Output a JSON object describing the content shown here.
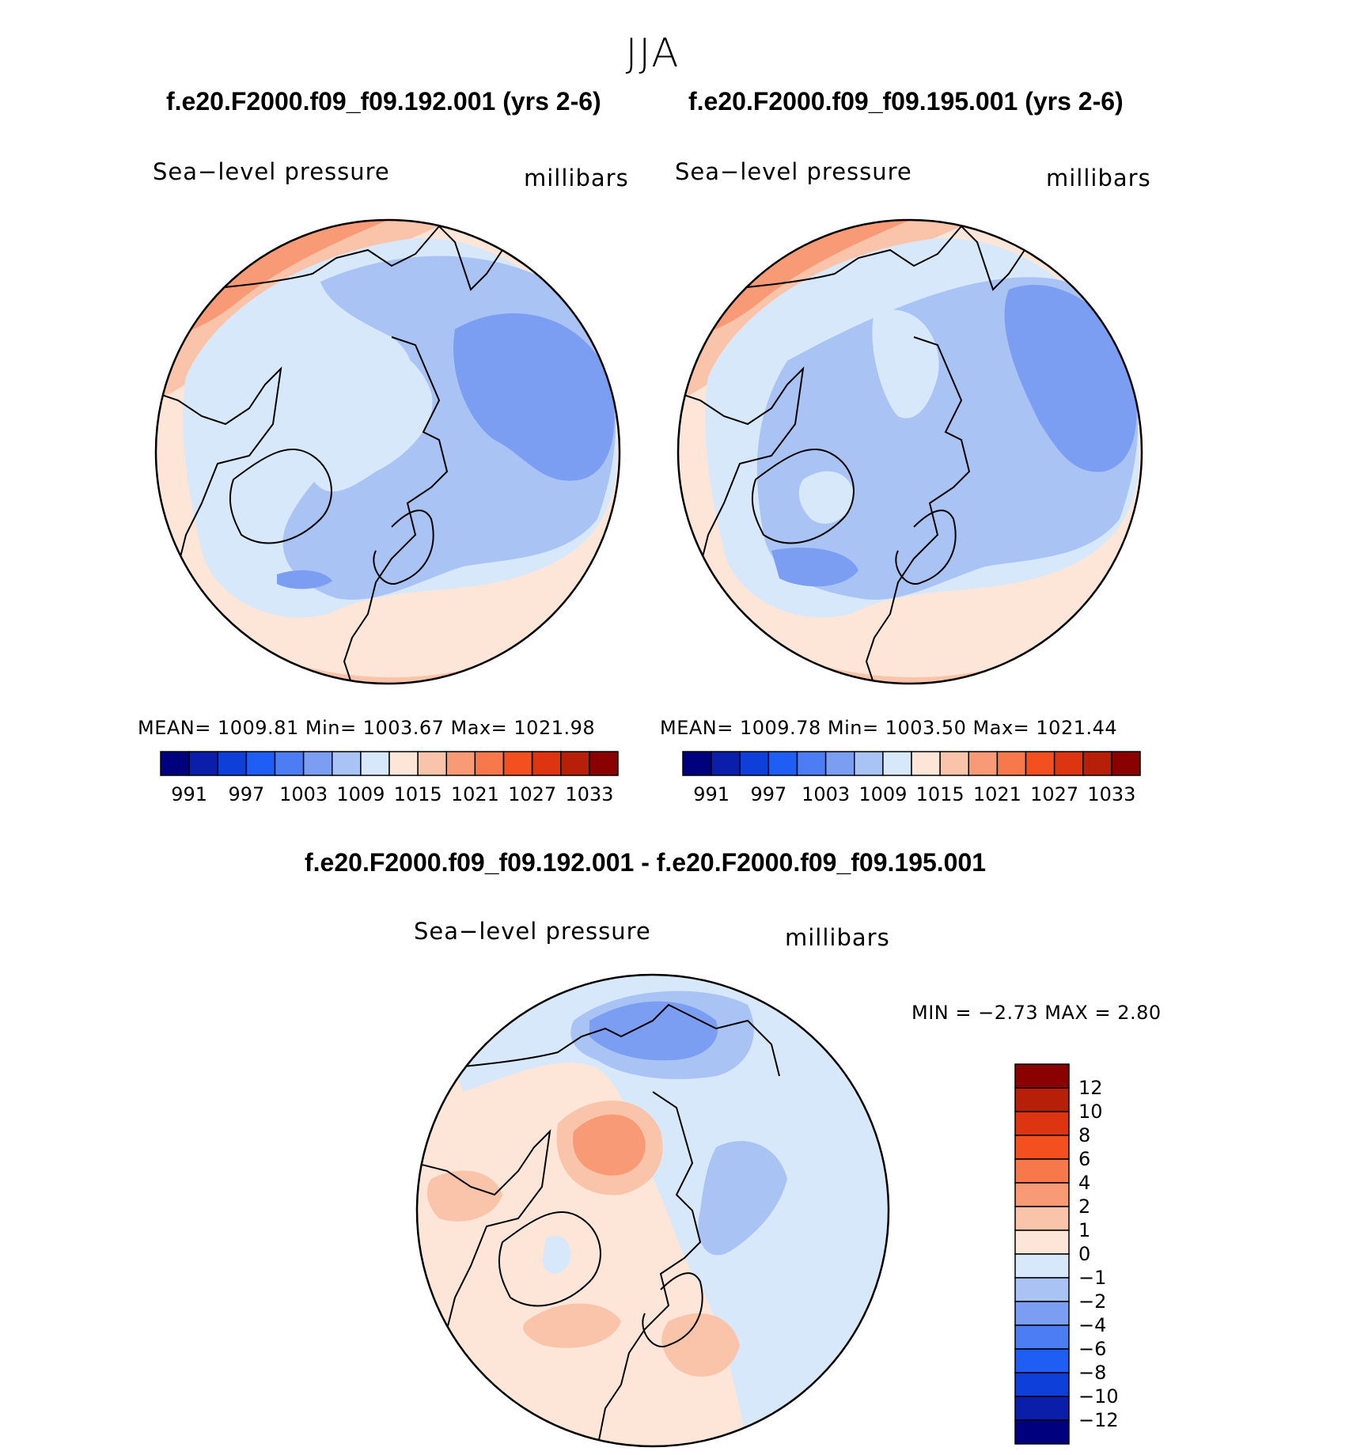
{
  "season": "JJA",
  "colors": {
    "abs_scale": [
      "#00007f",
      "#0a1eaa",
      "#0f3fd9",
      "#1f5ef5",
      "#4d7df2",
      "#7c9ef2",
      "#a9c3f5",
      "#d7e8fb",
      "#fde6d7",
      "#f9c4a9",
      "#f79a75",
      "#f7784a",
      "#f4501f",
      "#dd3411",
      "#b71f09",
      "#8b0000"
    ],
    "diff_scale": [
      "#8b0000",
      "#b71f09",
      "#dd3411",
      "#f4501f",
      "#f7784a",
      "#f79a75",
      "#f9c4a9",
      "#fde6d7",
      "#d7e8fb",
      "#a9c3f5",
      "#7c9ef2",
      "#4d7df2",
      "#1f5ef5",
      "#0f3fd9",
      "#0a1eaa",
      "#00007f"
    ]
  },
  "panels": [
    {
      "title": "f.e20.F2000.f09_f09.192.001 (yrs 2-6)",
      "field": "Sea−level pressure",
      "units": "millibars",
      "stats": "MEAN=  1009.81    Min=  1003.67    Max=  1021.98"
    },
    {
      "title": "f.e20.F2000.f09_f09.195.001 (yrs 2-6)",
      "field": "Sea−level pressure",
      "units": "millibars",
      "stats": "MEAN=  1009.78    Min=  1003.50    Max=  1021.44"
    }
  ],
  "diff_panel": {
    "title": "f.e20.F2000.f09_f09.192.001 - f.e20.F2000.f09_f09.195.001",
    "field": "Sea−level pressure",
    "units": "millibars",
    "stats": "MIN =    −2.73  MAX =      2.80"
  },
  "chart_data": [
    {
      "type": "heatmap",
      "title": "f.e20.F2000.f09_f09.192.001 (yrs 2-6)",
      "subtitle": "Sea-level pressure (millibars), JJA, polar stereographic north",
      "stats": {
        "mean": 1009.81,
        "min": 1003.67,
        "max": 1021.98
      },
      "colorbar_levels": [
        991,
        997,
        1003,
        1009,
        1015,
        1021,
        1027,
        1033
      ],
      "colorbar_tick_labels": [
        "991",
        "997",
        "1003",
        "1009",
        "1015",
        "1021",
        "1027",
        "1033"
      ]
    },
    {
      "type": "heatmap",
      "title": "f.e20.F2000.f09_f09.195.001 (yrs 2-6)",
      "subtitle": "Sea-level pressure (millibars), JJA, polar stereographic north",
      "stats": {
        "mean": 1009.78,
        "min": 1003.5,
        "max": 1021.44
      },
      "colorbar_levels": [
        991,
        997,
        1003,
        1009,
        1015,
        1021,
        1027,
        1033
      ],
      "colorbar_tick_labels": [
        "991",
        "997",
        "1003",
        "1009",
        "1015",
        "1021",
        "1027",
        "1033"
      ]
    },
    {
      "type": "heatmap",
      "title": "f.e20.F2000.f09_f09.192.001 - f.e20.F2000.f09_f09.195.001",
      "subtitle": "Sea-level pressure difference (millibars)",
      "stats": {
        "min": -2.73,
        "max": 2.8
      },
      "colorbar_levels": [
        12,
        10,
        8,
        6,
        4,
        2,
        1,
        0,
        -1,
        -2,
        -4,
        -6,
        -8,
        -10,
        -12
      ],
      "colorbar_tick_labels": [
        "12",
        "10",
        "8",
        "6",
        "4",
        "2",
        "1",
        "0",
        "−1",
        "−2",
        "−4",
        "−6",
        "−8",
        "−10",
        "−12"
      ]
    }
  ]
}
